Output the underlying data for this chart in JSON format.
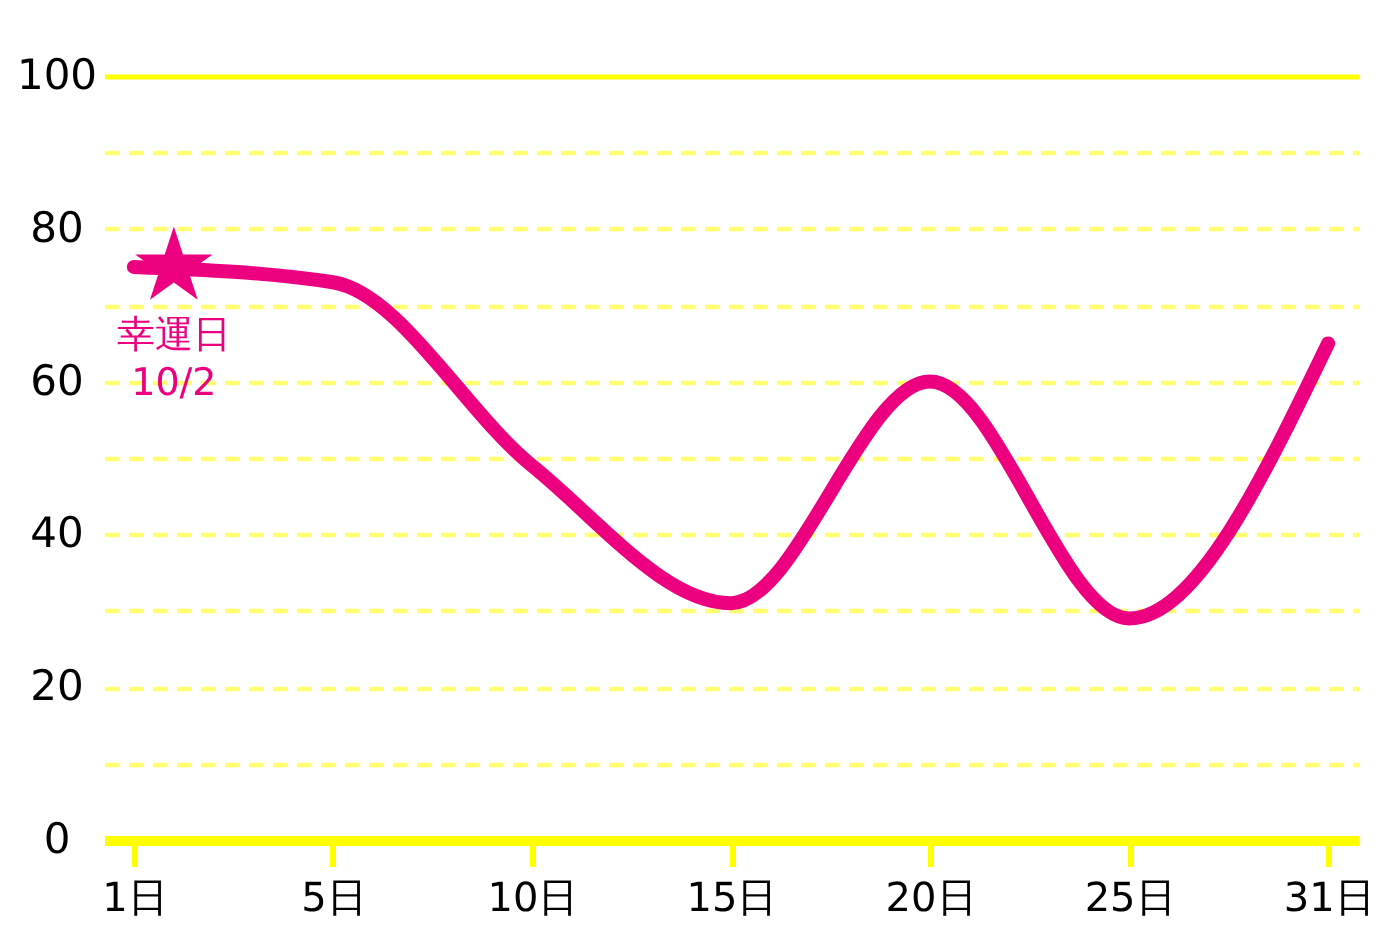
{
  "chart_data": {
    "type": "line",
    "categories": [
      "1日",
      "5日",
      "10日",
      "15日",
      "20日",
      "25日",
      "31日"
    ],
    "series": [
      {
        "color": "#ec0080",
        "values": [
          75,
          73,
          49,
          31,
          60,
          29,
          65
        ]
      },
      {
        "type": "scatter",
        "x": [
          "1日"
        ],
        "values": [
          75
        ],
        "color": "#ec0080",
        "marker": "star"
      }
    ],
    "annotations": [
      {
        "text": "幸運日\n10/2",
        "x": "1日",
        "y": 75
      }
    ],
    "ylim": [
      0,
      100
    ],
    "yticks": [
      0,
      {
        "value": 10,
        "label": null
      },
      20,
      {
        "value": 30,
        "label": null
      },
      40,
      {
        "value": 50,
        "label": null
      },
      60,
      {
        "value": 70,
        "label": null
      },
      80,
      {
        "value": 90,
        "label": null
      },
      100
    ],
    "grid": "y"
  }
}
